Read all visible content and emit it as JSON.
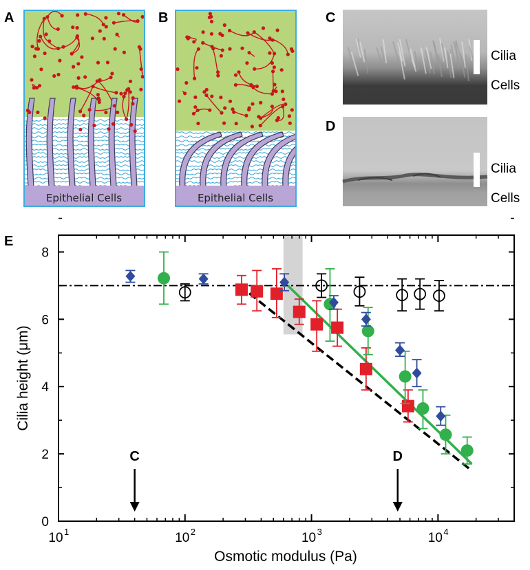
{
  "panels": {
    "A": {
      "label": "A",
      "base_text": "Epithelial Cells"
    },
    "B": {
      "label": "B",
      "base_text": "Epithelial Cells"
    },
    "C": {
      "label": "C",
      "tag_top": "Cilia",
      "tag_bottom": "Cells"
    },
    "D": {
      "label": "D",
      "tag_top": "Cilia",
      "tag_bottom": "Cells"
    },
    "E": {
      "label": "E"
    }
  },
  "colors": {
    "mucus": "#b7d57a",
    "polymer": "#c8161d",
    "cilia_fill": "#b9a6d6",
    "cilia_stroke": "#3d3d5c",
    "pcl_wave": "#2aa0d8",
    "border": "#3aaee0",
    "red": "#e2202a",
    "green": "#31b04b",
    "blue": "#2e4b9e",
    "black": "#000000",
    "shade": "#d4d4d4"
  },
  "chart_data": {
    "type": "scatter",
    "xscale": "log",
    "xlabel": "Osmotic modulus (Pa)",
    "ylabel": "Cilia height (μm)",
    "xlim": [
      10,
      40000
    ],
    "ylim": [
      0,
      8.5
    ],
    "x_ticks": [
      {
        "value": 10,
        "base": "10",
        "exp": "1"
      },
      {
        "value": 100,
        "base": "10",
        "exp": "2"
      },
      {
        "value": 1000,
        "base": "10",
        "exp": "3"
      },
      {
        "value": 10000,
        "base": "10",
        "exp": "4"
      }
    ],
    "y_ticks": [
      0,
      2,
      4,
      6,
      8
    ],
    "shaded_band": {
      "x": [
        600,
        850
      ],
      "y": [
        5.55,
        8.5
      ]
    },
    "plateau_line": {
      "y": 7.0,
      "style": "dash-dot"
    },
    "fit_lines": [
      {
        "id": "green-fit",
        "color": "green",
        "style": "solid",
        "x": [
          650,
          18500
        ],
        "y": [
          7.0,
          1.7
        ]
      },
      {
        "id": "black-fit",
        "color": "black",
        "style": "dashed",
        "x": [
          270,
          18500
        ],
        "y": [
          7.0,
          1.5
        ]
      }
    ],
    "arrows": [
      {
        "label": "C",
        "x": 40
      },
      {
        "label": "D",
        "x": 4800
      }
    ],
    "series": [
      {
        "id": "red",
        "marker": "square",
        "color": "red",
        "points": [
          {
            "x": 280,
            "y": 6.88,
            "lo": 6.45,
            "hi": 7.3
          },
          {
            "x": 370,
            "y": 6.83,
            "lo": 6.25,
            "hi": 7.45
          },
          {
            "x": 530,
            "y": 6.76,
            "lo": 6.05,
            "hi": 7.5
          },
          {
            "x": 800,
            "y": 6.22,
            "lo": 5.85,
            "hi": 6.6
          },
          {
            "x": 1100,
            "y": 5.85,
            "lo": 5.05,
            "hi": 6.55
          },
          {
            "x": 1600,
            "y": 5.75,
            "lo": 5.2,
            "hi": 6.3
          },
          {
            "x": 2700,
            "y": 4.52,
            "lo": 3.9,
            "hi": 5.15
          },
          {
            "x": 5800,
            "y": 3.42,
            "lo": 2.95,
            "hi": 3.9
          }
        ]
      },
      {
        "id": "green",
        "marker": "circle",
        "color": "green",
        "points": [
          {
            "x": 68,
            "y": 7.22,
            "lo": 6.45,
            "hi": 8.0
          },
          {
            "x": 1400,
            "y": 6.45,
            "lo": 5.35,
            "hi": 7.5
          },
          {
            "x": 2800,
            "y": 5.65,
            "lo": 4.95,
            "hi": 6.35
          },
          {
            "x": 5500,
            "y": 4.3,
            "lo": 3.5,
            "hi": 5.05
          },
          {
            "x": 7600,
            "y": 3.35,
            "lo": 2.75,
            "hi": 3.9
          },
          {
            "x": 11500,
            "y": 2.57,
            "lo": 2.0,
            "hi": 3.15
          },
          {
            "x": 17000,
            "y": 2.1,
            "lo": 1.7,
            "hi": 2.5
          }
        ]
      },
      {
        "id": "blue",
        "marker": "diamond",
        "color": "blue",
        "points": [
          {
            "x": 37,
            "y": 7.28,
            "lo": 7.1,
            "hi": 7.45
          },
          {
            "x": 140,
            "y": 7.2,
            "lo": 7.05,
            "hi": 7.35
          },
          {
            "x": 610,
            "y": 7.1,
            "lo": 6.85,
            "hi": 7.35
          },
          {
            "x": 1500,
            "y": 6.5,
            "lo": 6.3,
            "hi": 6.7
          },
          {
            "x": 2700,
            "y": 6.0,
            "lo": 5.8,
            "hi": 6.2
          },
          {
            "x": 5000,
            "y": 5.08,
            "lo": 4.9,
            "hi": 5.3
          },
          {
            "x": 6800,
            "y": 4.4,
            "lo": 4.0,
            "hi": 4.8
          },
          {
            "x": 10500,
            "y": 3.12,
            "lo": 2.85,
            "hi": 3.4
          }
        ]
      },
      {
        "id": "open",
        "marker": "open-circle",
        "color": "black",
        "points": [
          {
            "x": 100,
            "y": 6.8,
            "lo": 6.55,
            "hi": 7.05
          },
          {
            "x": 1200,
            "y": 7.0,
            "lo": 6.65,
            "hi": 7.35
          },
          {
            "x": 2400,
            "y": 6.82,
            "lo": 6.4,
            "hi": 7.25
          },
          {
            "x": 5200,
            "y": 6.72,
            "lo": 6.25,
            "hi": 7.2
          },
          {
            "x": 7200,
            "y": 6.75,
            "lo": 6.3,
            "hi": 7.2
          },
          {
            "x": 10200,
            "y": 6.7,
            "lo": 6.25,
            "hi": 7.15
          }
        ]
      }
    ]
  }
}
